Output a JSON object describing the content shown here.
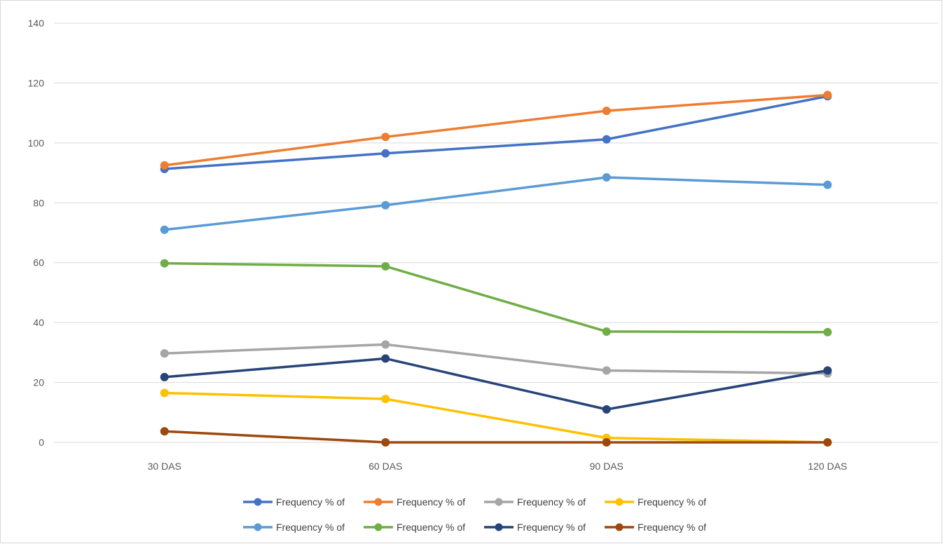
{
  "chart_data": {
    "type": "line",
    "title": "",
    "xlabel": "",
    "ylabel": "",
    "categories": [
      "30 DAS",
      "60 DAS",
      "90 DAS",
      "120 DAS"
    ],
    "ylim": [
      0,
      140
    ],
    "yticks": [
      0,
      20,
      40,
      60,
      80,
      100,
      120,
      140
    ],
    "grid": true,
    "legend_position": "bottom",
    "series": [
      {
        "name": "Frequency % of",
        "color": "#4472C4",
        "values": [
          91.3,
          96.5,
          101.2,
          115.6
        ]
      },
      {
        "name": "Frequency % of",
        "color": "#ED7D31",
        "values": [
          92.5,
          102.0,
          110.7,
          116.0
        ]
      },
      {
        "name": "Frequency % of",
        "color": "#A5A5A5",
        "values": [
          29.7,
          32.7,
          24.0,
          23.0
        ]
      },
      {
        "name": "Frequency % of",
        "color": "#FFC000",
        "values": [
          16.5,
          14.5,
          1.5,
          0.0
        ]
      },
      {
        "name": "Frequency % of",
        "color": "#5B9BD5",
        "values": [
          71.0,
          79.2,
          88.5,
          86.0
        ]
      },
      {
        "name": "Frequency % of",
        "color": "#70AD47",
        "values": [
          59.8,
          58.8,
          37.0,
          36.8
        ]
      },
      {
        "name": "Frequency % of",
        "color": "#264478",
        "values": [
          21.8,
          28.0,
          11.0,
          24.0
        ]
      },
      {
        "name": "Frequency % of",
        "color": "#9E480E",
        "values": [
          3.7,
          0.0,
          0.0,
          0.0
        ]
      }
    ]
  }
}
